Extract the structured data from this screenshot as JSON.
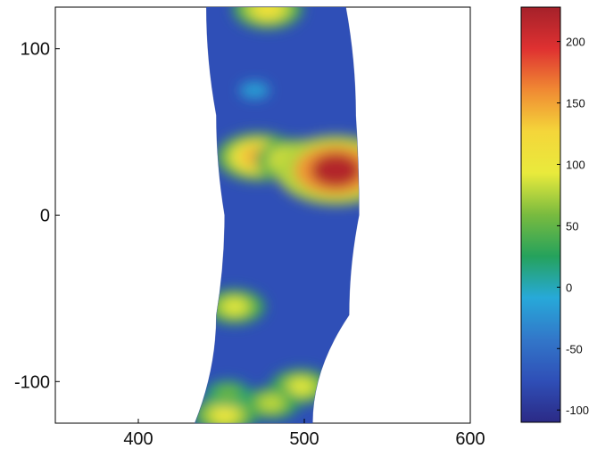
{
  "chart_data": {
    "type": "heatmap",
    "title": "",
    "xlabel": "",
    "ylabel": "",
    "xlim": [
      350,
      600
    ],
    "ylim": [
      -125,
      125
    ],
    "x_ticks": [
      400,
      500,
      600
    ],
    "y_ticks": [
      100,
      0,
      -100
    ],
    "x_tick_labels": [
      "400",
      "500",
      "600"
    ],
    "y_tick_labels": [
      "100",
      "0",
      "-100"
    ],
    "grid": false,
    "data_region": {
      "shape": "annular sector",
      "inner_edge_x": [
        [
          125,
          441
        ],
        [
          60,
          447
        ],
        [
          0,
          452
        ],
        [
          -60,
          447
        ],
        [
          -125,
          434
        ]
      ],
      "outer_edge_x": [
        [
          125,
          525
        ],
        [
          60,
          531
        ],
        [
          0,
          533
        ],
        [
          -60,
          527
        ],
        [
          -125,
          505
        ]
      ]
    },
    "hotspots": [
      {
        "x": 472,
        "y": 35,
        "value": 140
      },
      {
        "x": 493,
        "y": 33,
        "value": 120
      },
      {
        "x": 519,
        "y": 27,
        "value": 220
      },
      {
        "x": 478,
        "y": 124,
        "value": 110
      },
      {
        "x": 458,
        "y": -55,
        "value": 90
      },
      {
        "x": 498,
        "y": -103,
        "value": 90
      },
      {
        "x": 480,
        "y": -113,
        "value": 80
      },
      {
        "x": 452,
        "y": -120,
        "value": 100
      },
      {
        "x": 454,
        "y": -107,
        "value": 55
      },
      {
        "x": 470,
        "y": 75,
        "value": -20
      }
    ],
    "colorbar": {
      "range": [
        -110,
        228
      ],
      "ticks": [
        200,
        150,
        100,
        50,
        0,
        -50,
        -100
      ],
      "tick_labels": [
        "200",
        "150",
        "100",
        "50",
        "0",
        "-50",
        "-100"
      ],
      "colormap": [
        "#2b2a86",
        "#2f4fb7",
        "#3277c9",
        "#27a9d9",
        "#25a25c",
        "#79bb3f",
        "#e9ea3c",
        "#f4d63a",
        "#f08a33",
        "#df3131",
        "#a5212a"
      ]
    }
  }
}
